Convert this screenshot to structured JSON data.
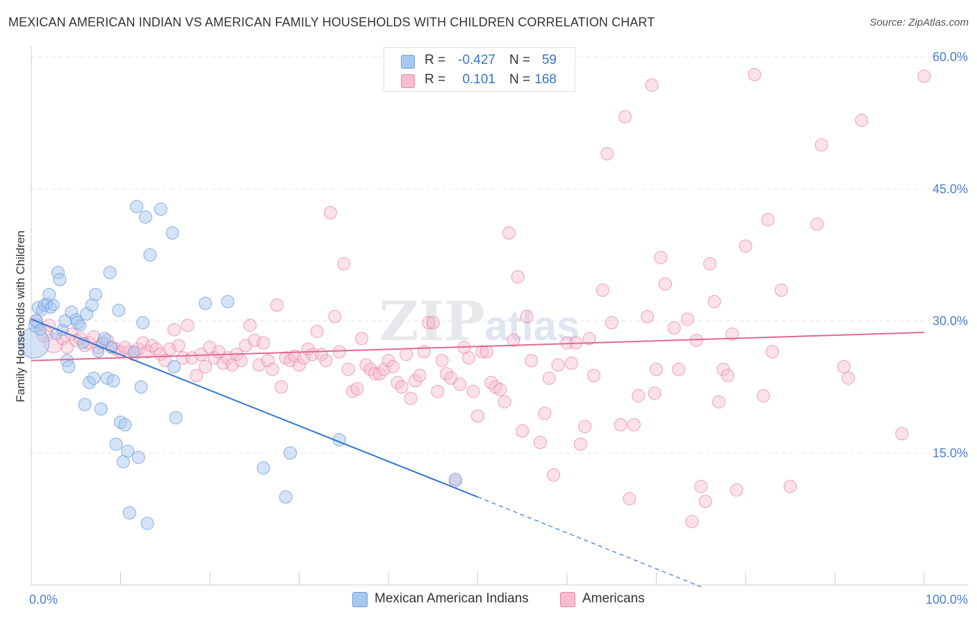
{
  "title": "MEXICAN AMERICAN INDIAN VS AMERICAN FAMILY HOUSEHOLDS WITH CHILDREN CORRELATION CHART",
  "source": "Source: ZipAtlas.com",
  "watermark": "ZIPatlas",
  "legend": {
    "rows": [
      {
        "r_label": "R =",
        "r_value": "-0.427",
        "n_label": "N =",
        "n_value": "59",
        "color": "#a9c8f0",
        "border": "#6f9fdc"
      },
      {
        "r_label": "R =",
        "r_value": "0.101",
        "n_label": "N =",
        "n_value": "168",
        "color": "#f6bccf",
        "border": "#e886a6"
      }
    ]
  },
  "bottom_legend": {
    "series1": "Mexican American Indians",
    "series2": "Americans"
  },
  "colors": {
    "blue_fill": "#a9c8f0",
    "blue_stroke": "#6f9fdc",
    "blue_line": "#3074d4",
    "pink_fill": "#f6bccf",
    "pink_stroke": "#e886a6",
    "pink_line": "#e2688f",
    "axis_label": "#4a7fd0",
    "grid": "#dfe3e8"
  },
  "chart_data": {
    "type": "scatter",
    "xlabel": "",
    "ylabel": "Family Households with Children",
    "xlim": [
      0,
      100
    ],
    "ylim": [
      0,
      60
    ],
    "x_tick_labels": [
      "0.0%",
      "100.0%"
    ],
    "y_ticks": [
      15,
      30,
      45,
      60
    ],
    "y_tick_labels": [
      "15.0%",
      "30.0%",
      "45.0%",
      "60.0%"
    ],
    "series": [
      {
        "name": "Mexican American Indians",
        "trend": {
          "x0": 0,
          "y0": 30.2,
          "x1": 50,
          "y1": 10.0,
          "dash_x1": 75,
          "dash_y1": -0.2
        },
        "points": [
          [
            0.3,
            27.5,
            22
          ],
          [
            0.5,
            29.5,
            10
          ],
          [
            0.6,
            30.0,
            9
          ],
          [
            0.8,
            31.5,
            9
          ],
          [
            1.0,
            29.0,
            8
          ],
          [
            1.2,
            31.2,
            8
          ],
          [
            1.5,
            31.8,
            9
          ],
          [
            1.8,
            32.0,
            8
          ],
          [
            2.0,
            33.0,
            9
          ],
          [
            2.2,
            31.5,
            8
          ],
          [
            2.5,
            31.8,
            8
          ],
          [
            2.8,
            28.5,
            8
          ],
          [
            3.0,
            35.5,
            9
          ],
          [
            3.2,
            34.7,
            9
          ],
          [
            3.5,
            29.0,
            8
          ],
          [
            3.8,
            30.0,
            9
          ],
          [
            4.0,
            25.5,
            9
          ],
          [
            4.2,
            24.8,
            9
          ],
          [
            4.5,
            31.0,
            9
          ],
          [
            5.0,
            30.2,
            8
          ],
          [
            5.2,
            29.8,
            9
          ],
          [
            5.5,
            29.5,
            8
          ],
          [
            5.8,
            27.5,
            8
          ],
          [
            6.0,
            20.5,
            9
          ],
          [
            6.2,
            30.8,
            9
          ],
          [
            6.5,
            23.0,
            9
          ],
          [
            6.8,
            31.8,
            9
          ],
          [
            7.0,
            23.5,
            9
          ],
          [
            7.2,
            33.0,
            9
          ],
          [
            7.5,
            26.5,
            8
          ],
          [
            7.8,
            20.0,
            9
          ],
          [
            8.0,
            27.5,
            8
          ],
          [
            8.2,
            28.0,
            9
          ],
          [
            8.5,
            23.5,
            9
          ],
          [
            8.8,
            35.5,
            9
          ],
          [
            9.0,
            27.0,
            8
          ],
          [
            9.2,
            23.2,
            9
          ],
          [
            9.5,
            16.0,
            9
          ],
          [
            9.8,
            31.2,
            9
          ],
          [
            10.0,
            18.5,
            9
          ],
          [
            10.3,
            14.0,
            9
          ],
          [
            10.5,
            18.2,
            9
          ],
          [
            10.8,
            15.2,
            9
          ],
          [
            11.0,
            8.2,
            9
          ],
          [
            11.5,
            26.5,
            8
          ],
          [
            11.8,
            43.0,
            9
          ],
          [
            12.0,
            14.5,
            9
          ],
          [
            12.3,
            22.5,
            9
          ],
          [
            12.5,
            29.8,
            9
          ],
          [
            12.8,
            41.8,
            9
          ],
          [
            13.0,
            7.0,
            9
          ],
          [
            13.3,
            37.5,
            9
          ],
          [
            14.5,
            42.7,
            9
          ],
          [
            15.8,
            40.0,
            9
          ],
          [
            16.0,
            24.8,
            9
          ],
          [
            16.2,
            19.0,
            9
          ],
          [
            19.5,
            32.0,
            9
          ],
          [
            22.0,
            32.2,
            9
          ],
          [
            26.0,
            13.3,
            9
          ],
          [
            28.5,
            10.0,
            9
          ],
          [
            29.0,
            15.0,
            9
          ],
          [
            34.5,
            16.5,
            9
          ],
          [
            47.5,
            12.0,
            9
          ]
        ]
      },
      {
        "name": "Americans",
        "trend": {
          "x0": 0,
          "y0": 25.5,
          "x1": 100,
          "y1": 28.7
        },
        "points": [
          [
            0.5,
            30.0,
            9
          ],
          [
            1.5,
            28.5,
            12
          ],
          [
            2.0,
            29.5,
            9
          ],
          [
            2.5,
            27.5,
            14
          ],
          [
            3.5,
            28.0,
            9
          ],
          [
            4.0,
            27.0,
            9
          ],
          [
            4.5,
            28.5,
            9
          ],
          [
            5.0,
            27.8,
            9
          ],
          [
            5.5,
            28.0,
            9
          ],
          [
            6.0,
            27.2,
            9
          ],
          [
            6.5,
            27.5,
            9
          ],
          [
            7.0,
            28.2,
            9
          ],
          [
            7.5,
            27.0,
            9
          ],
          [
            8.0,
            27.5,
            9
          ],
          [
            8.5,
            27.8,
            9
          ],
          [
            9.0,
            27.0,
            9
          ],
          [
            9.5,
            26.8,
            9
          ],
          [
            10.0,
            26.5,
            9
          ],
          [
            10.5,
            27.0,
            9
          ],
          [
            11.0,
            26.5,
            9
          ],
          [
            11.5,
            26.2,
            9
          ],
          [
            12.0,
            26.8,
            9
          ],
          [
            12.5,
            27.5,
            9
          ],
          [
            13.0,
            26.5,
            9
          ],
          [
            13.5,
            27.2,
            9
          ],
          [
            14.0,
            26.8,
            9
          ],
          [
            14.5,
            26.2,
            9
          ],
          [
            15.0,
            25.5,
            9
          ],
          [
            15.5,
            26.8,
            9
          ],
          [
            16.0,
            29.0,
            9
          ],
          [
            16.5,
            27.2,
            9
          ],
          [
            17.0,
            25.8,
            9
          ],
          [
            17.5,
            29.5,
            9
          ],
          [
            18.0,
            25.8,
            9
          ],
          [
            18.5,
            23.8,
            9
          ],
          [
            19.0,
            26.2,
            9
          ],
          [
            19.5,
            24.8,
            9
          ],
          [
            20.0,
            27.0,
            9
          ],
          [
            20.5,
            25.8,
            9
          ],
          [
            21.0,
            26.5,
            9
          ],
          [
            21.5,
            25.2,
            9
          ],
          [
            22.0,
            25.8,
            9
          ],
          [
            22.5,
            25.0,
            9
          ],
          [
            23.0,
            26.2,
            9
          ],
          [
            23.5,
            25.5,
            9
          ],
          [
            24.0,
            27.2,
            9
          ],
          [
            24.5,
            29.5,
            9
          ],
          [
            25.0,
            27.8,
            9
          ],
          [
            25.5,
            25.0,
            9
          ],
          [
            26.0,
            27.5,
            9
          ],
          [
            26.5,
            25.5,
            9
          ],
          [
            27.0,
            24.5,
            9
          ],
          [
            27.5,
            31.8,
            9
          ],
          [
            28.0,
            22.5,
            9
          ],
          [
            28.5,
            25.8,
            9
          ],
          [
            29.0,
            25.5,
            9
          ],
          [
            29.5,
            26.0,
            9
          ],
          [
            30.0,
            25.0,
            9
          ],
          [
            30.5,
            25.8,
            9
          ],
          [
            31.0,
            26.8,
            9
          ],
          [
            31.5,
            26.2,
            9
          ],
          [
            32.0,
            28.8,
            9
          ],
          [
            32.5,
            26.2,
            9
          ],
          [
            33.0,
            25.5,
            9
          ],
          [
            33.5,
            42.3,
            9
          ],
          [
            34.0,
            30.5,
            9
          ],
          [
            34.5,
            26.5,
            9
          ],
          [
            35.0,
            36.5,
            9
          ],
          [
            35.5,
            24.5,
            9
          ],
          [
            36.0,
            22.0,
            9
          ],
          [
            36.5,
            22.3,
            9
          ],
          [
            37.0,
            28.0,
            9
          ],
          [
            37.5,
            25.0,
            9
          ],
          [
            38.0,
            24.5,
            9
          ],
          [
            38.5,
            24.0,
            9
          ],
          [
            39.0,
            24.0,
            9
          ],
          [
            39.5,
            24.5,
            9
          ],
          [
            40.0,
            25.5,
            9
          ],
          [
            40.5,
            24.8,
            9
          ],
          [
            41.0,
            23.0,
            9
          ],
          [
            41.5,
            22.5,
            9
          ],
          [
            42.0,
            26.2,
            9
          ],
          [
            42.5,
            21.2,
            9
          ],
          [
            43.0,
            23.2,
            9
          ],
          [
            43.5,
            23.8,
            9
          ],
          [
            44.0,
            26.5,
            9
          ],
          [
            44.5,
            29.8,
            9
          ],
          [
            45.0,
            29.8,
            9
          ],
          [
            45.5,
            22.0,
            9
          ],
          [
            46.0,
            25.5,
            9
          ],
          [
            46.5,
            24.0,
            9
          ],
          [
            47.0,
            23.5,
            9
          ],
          [
            47.5,
            11.8,
            9
          ],
          [
            48.0,
            22.8,
            9
          ],
          [
            48.5,
            27.0,
            9
          ],
          [
            49.0,
            25.8,
            9
          ],
          [
            49.5,
            22.0,
            9
          ],
          [
            50.0,
            19.2,
            9
          ],
          [
            50.5,
            26.5,
            9
          ],
          [
            51.0,
            26.5,
            9
          ],
          [
            51.5,
            23.0,
            9
          ],
          [
            52.0,
            22.5,
            9
          ],
          [
            52.5,
            22.2,
            9
          ],
          [
            53.0,
            20.8,
            9
          ],
          [
            53.5,
            40.0,
            9
          ],
          [
            54.0,
            27.8,
            9
          ],
          [
            54.5,
            35.0,
            9
          ],
          [
            55.0,
            17.5,
            9
          ],
          [
            55.5,
            30.5,
            9
          ],
          [
            56.0,
            25.5,
            9
          ],
          [
            57.0,
            16.2,
            9
          ],
          [
            57.5,
            19.5,
            9
          ],
          [
            58.0,
            23.5,
            9
          ],
          [
            58.5,
            12.5,
            9
          ],
          [
            59.0,
            25.0,
            9
          ],
          [
            60.0,
            27.5,
            9
          ],
          [
            60.5,
            25.2,
            9
          ],
          [
            61.0,
            27.5,
            9
          ],
          [
            61.5,
            16.0,
            9
          ],
          [
            62.0,
            18.0,
            9
          ],
          [
            62.5,
            28.0,
            9
          ],
          [
            63.0,
            23.8,
            9
          ],
          [
            64.0,
            33.5,
            9
          ],
          [
            64.5,
            49.0,
            9
          ],
          [
            65.0,
            29.8,
            9
          ],
          [
            66.0,
            18.2,
            9
          ],
          [
            66.5,
            53.2,
            9
          ],
          [
            67.0,
            9.8,
            9
          ],
          [
            67.5,
            18.2,
            9
          ],
          [
            68.0,
            21.5,
            9
          ],
          [
            69.0,
            30.5,
            9
          ],
          [
            69.5,
            56.8,
            9
          ],
          [
            69.8,
            21.8,
            9
          ],
          [
            70.0,
            24.5,
            9
          ],
          [
            70.5,
            37.2,
            9
          ],
          [
            71.0,
            34.2,
            9
          ],
          [
            72.0,
            29.2,
            9
          ],
          [
            72.5,
            24.5,
            9
          ],
          [
            73.5,
            30.2,
            9
          ],
          [
            74.0,
            7.2,
            9
          ],
          [
            74.5,
            27.8,
            9
          ],
          [
            75.0,
            11.2,
            9
          ],
          [
            75.5,
            9.5,
            9
          ],
          [
            76.0,
            36.5,
            9
          ],
          [
            76.5,
            32.2,
            9
          ],
          [
            77.0,
            20.8,
            9
          ],
          [
            77.5,
            24.5,
            9
          ],
          [
            78.0,
            23.8,
            9
          ],
          [
            78.5,
            28.5,
            9
          ],
          [
            79.0,
            10.8,
            9
          ],
          [
            80.0,
            38.5,
            9
          ],
          [
            81.0,
            58.0,
            9
          ],
          [
            82.0,
            21.5,
            9
          ],
          [
            82.5,
            41.5,
            9
          ],
          [
            83.0,
            26.5,
            9
          ],
          [
            84.0,
            33.5,
            9
          ],
          [
            85.0,
            11.2,
            9
          ],
          [
            88.0,
            41.0,
            9
          ],
          [
            88.5,
            50.0,
            9
          ],
          [
            91.0,
            24.8,
            9
          ],
          [
            91.5,
            23.5,
            9
          ],
          [
            93.0,
            52.8,
            9
          ],
          [
            97.5,
            17.2,
            9
          ],
          [
            100.0,
            57.8,
            9
          ]
        ]
      }
    ]
  }
}
